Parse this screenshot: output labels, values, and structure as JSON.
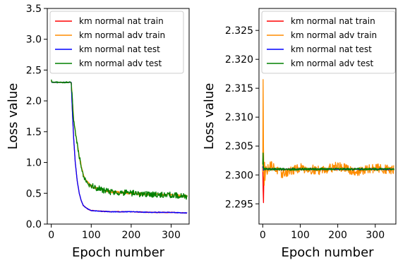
{
  "chart_data": [
    {
      "type": "line",
      "xlabel": "Epoch number",
      "ylabel": "Loss value",
      "xlim": [
        -10,
        345
      ],
      "ylim": [
        0.0,
        3.5
      ],
      "xticks": [
        "0",
        "100",
        "200",
        "300"
      ],
      "yticks": [
        "0.0",
        "0.5",
        "1.0",
        "1.5",
        "2.0",
        "2.5",
        "3.0",
        "3.5"
      ],
      "grid": false,
      "legend_position": "top-left",
      "series": [
        {
          "name": "km normal nat train",
          "color": "#ff0000",
          "x": [
            0,
            2,
            45,
            50,
            53,
            56,
            60,
            65,
            70,
            75,
            80,
            90,
            100,
            120,
            150,
            200,
            250,
            300,
            340
          ],
          "y": [
            2.32,
            2.3,
            2.3,
            2.3,
            1.8,
            1.4,
            1.0,
            0.7,
            0.5,
            0.38,
            0.3,
            0.25,
            0.22,
            0.21,
            0.2,
            0.2,
            0.19,
            0.19,
            0.18
          ]
        },
        {
          "name": "km normal adv train",
          "color": "#ff8c00",
          "x": [
            0,
            2,
            45,
            50,
            53,
            56,
            60,
            65,
            70,
            75,
            80,
            90,
            100,
            120,
            150,
            200,
            250,
            300,
            340
          ],
          "y": [
            2.33,
            2.3,
            2.3,
            2.3,
            2.0,
            1.7,
            1.5,
            1.3,
            1.1,
            0.95,
            0.8,
            0.68,
            0.62,
            0.57,
            0.52,
            0.5,
            0.48,
            0.47,
            0.45
          ]
        },
        {
          "name": "km normal nat test",
          "color": "#0000ff",
          "x": [
            0,
            2,
            45,
            50,
            53,
            56,
            60,
            65,
            70,
            75,
            80,
            90,
            100,
            120,
            150,
            200,
            250,
            300,
            340
          ],
          "y": [
            2.31,
            2.3,
            2.3,
            2.3,
            1.8,
            1.4,
            1.0,
            0.7,
            0.5,
            0.38,
            0.3,
            0.25,
            0.22,
            0.21,
            0.2,
            0.2,
            0.19,
            0.19,
            0.18
          ]
        },
        {
          "name": "km normal adv test",
          "color": "#008000",
          "x": [
            0,
            2,
            45,
            50,
            53,
            56,
            60,
            65,
            70,
            75,
            80,
            90,
            100,
            120,
            150,
            200,
            250,
            300,
            340
          ],
          "y": [
            2.34,
            2.3,
            2.3,
            2.3,
            2.0,
            1.7,
            1.5,
            1.3,
            1.1,
            0.95,
            0.8,
            0.68,
            0.62,
            0.57,
            0.52,
            0.5,
            0.48,
            0.47,
            0.45
          ]
        }
      ]
    },
    {
      "type": "line",
      "xlabel": "Epoch number",
      "ylabel": "Loss value",
      "xlim": [
        -10,
        355
      ],
      "ylim": [
        2.2915,
        2.3288
      ],
      "xticks": [
        "0",
        "100",
        "200",
        "300"
      ],
      "yticks": [
        "2.295",
        "2.300",
        "2.305",
        "2.310",
        "2.315",
        "2.320",
        "2.325"
      ],
      "grid": false,
      "legend_position": "top-left",
      "series": [
        {
          "name": "km normal nat train",
          "color": "#ff0000",
          "x": [
            0,
            1,
            2,
            3,
            4,
            5,
            6,
            8,
            10,
            20,
            50,
            100,
            150,
            200,
            250,
            300,
            350
          ],
          "y": [
            2.3015,
            2.2975,
            2.2952,
            2.2995,
            2.3005,
            2.3012,
            2.301,
            2.301,
            2.301,
            2.301,
            2.301,
            2.301,
            2.301,
            2.301,
            2.301,
            2.301,
            2.301
          ]
        },
        {
          "name": "km normal adv train",
          "color": "#ff8c00",
          "x": [
            0,
            1,
            2,
            3,
            4,
            5,
            6,
            8,
            10,
            20,
            50,
            100,
            150,
            200,
            250,
            300,
            350
          ],
          "y": [
            2.3005,
            2.3165,
            2.3048,
            2.3002,
            2.2982,
            2.3022,
            2.2992,
            2.3015,
            2.3005,
            2.3018,
            2.3002,
            2.3012,
            2.3008,
            2.3015,
            2.3005,
            2.3012,
            2.3008
          ]
        },
        {
          "name": "km normal nat test",
          "color": "#0000ff",
          "x": [
            0,
            1,
            2,
            3,
            4,
            5,
            6,
            8,
            10,
            20,
            50,
            100,
            150,
            200,
            250,
            300,
            350
          ],
          "y": [
            2.3012,
            2.3015,
            2.3008,
            2.301,
            2.301,
            2.301,
            2.301,
            2.301,
            2.301,
            2.301,
            2.301,
            2.301,
            2.301,
            2.301,
            2.301,
            2.301,
            2.301
          ]
        },
        {
          "name": "km normal adv test",
          "color": "#008000",
          "x": [
            0,
            1,
            2,
            3,
            4,
            5,
            6,
            8,
            10,
            20,
            50,
            100,
            150,
            200,
            250,
            300,
            350
          ],
          "y": [
            2.3018,
            2.3038,
            2.3012,
            2.301,
            2.301,
            2.3012,
            2.301,
            2.301,
            2.301,
            2.301,
            2.301,
            2.301,
            2.301,
            2.301,
            2.301,
            2.301,
            2.301
          ]
        }
      ]
    }
  ]
}
